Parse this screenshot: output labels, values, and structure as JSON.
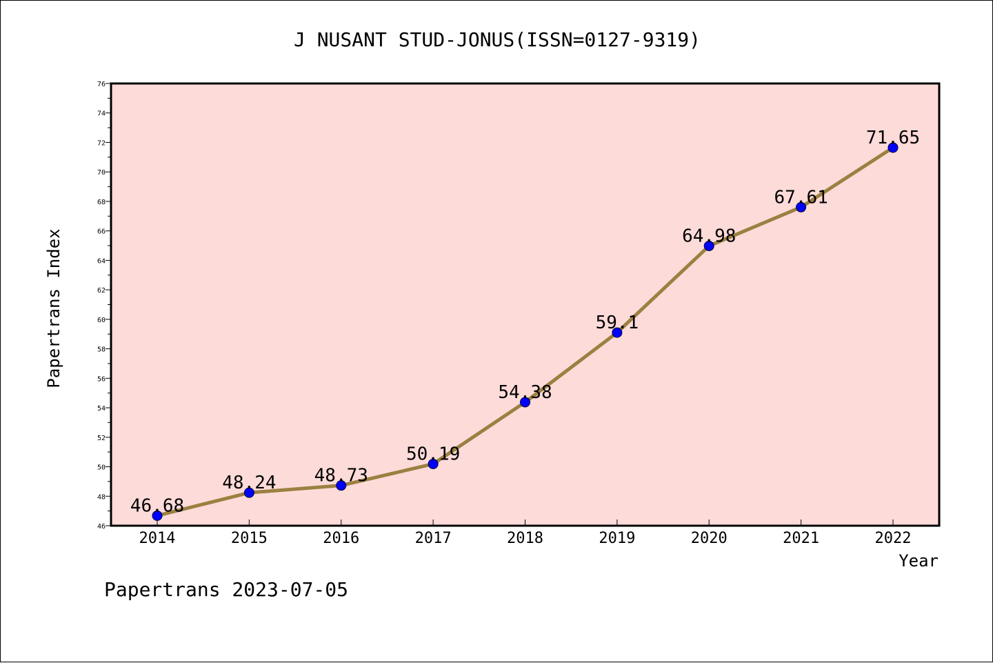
{
  "chart_data": {
    "type": "line",
    "title": "J NUSANT STUD-JONUS(ISSN=0127-9319)",
    "xlabel": "Year",
    "ylabel": "Papertrans Index",
    "footer": "Papertrans 2023-07-05",
    "categories": [
      "2014",
      "2015",
      "2016",
      "2017",
      "2018",
      "2019",
      "2020",
      "2021",
      "2022"
    ],
    "series": [
      {
        "values": [
          46.68,
          48.24,
          48.73,
          50.19,
          54.38,
          59.1,
          64.98,
          67.61,
          71.65
        ],
        "data_labels": [
          "46.68",
          "48.24",
          "48.73",
          "50.19",
          "54.38",
          "59.1",
          "64.98",
          "67.61",
          "71.65"
        ]
      }
    ],
    "ylim": [
      46,
      76
    ],
    "y_ticks": [
      "46",
      "48",
      "50",
      "52",
      "54",
      "56",
      "58",
      "60",
      "62",
      "64",
      "66",
      "68",
      "70",
      "72",
      "74",
      "76"
    ],
    "grid": false,
    "colors": {
      "plot_background": "#fddbd9",
      "line": "#9b8040",
      "marker": "#0000ff",
      "axis": "#000000"
    }
  }
}
